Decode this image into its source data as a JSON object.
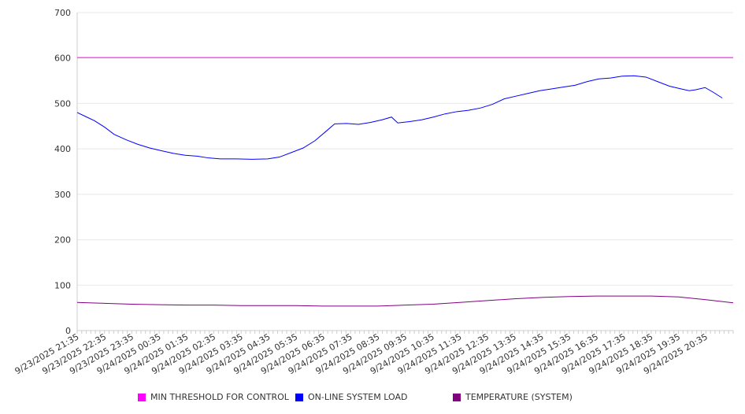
{
  "chart_data": {
    "type": "line",
    "title": "",
    "xlabel": "",
    "ylabel": "",
    "ylim": [
      0,
      700
    ],
    "yticks": [
      0,
      100,
      200,
      300,
      400,
      500,
      600,
      700
    ],
    "x_unit": "hours since 9/23/2025 21:35",
    "xlim": [
      0,
      24
    ],
    "xtick_labels": [
      "9/23/2025 21:35",
      "9/23/2025 22:35",
      "9/23/2025 23:35",
      "9/24/2025 00:35",
      "9/24/2025 01:35",
      "9/24/2025 02:35",
      "9/24/2025 03:35",
      "9/24/2025 04:35",
      "9/24/2025 05:35",
      "9/24/2025 06:35",
      "9/24/2025 07:35",
      "9/24/2025 08:35",
      "9/24/2025 09:35",
      "9/24/2025 10:35",
      "9/24/2025 11:35",
      "9/24/2025 12:35",
      "9/24/2025 13:35",
      "9/24/2025 14:35",
      "9/24/2025 15:35",
      "9/24/2025 16:35",
      "9/24/2025 17:35",
      "9/24/2025 18:35",
      "9/24/2025 19:35",
      "9/24/2025 20:35"
    ],
    "grid": true,
    "legend_position": "bottom",
    "series": [
      {
        "name": "MIN THRESHOLD FOR CONTROL",
        "color": "#ff00ff",
        "x": [
          0,
          24
        ],
        "y": [
          601,
          601
        ]
      },
      {
        "name": "ON-LINE SYSTEM LOAD",
        "color": "#0000ff",
        "x": [
          0,
          0.35,
          0.63,
          1,
          1.35,
          1.79,
          2.22,
          2.65,
          3.08,
          3.52,
          3.95,
          4.38,
          4.81,
          5.24,
          5.82,
          6.4,
          6.97,
          7.4,
          7.84,
          8.27,
          8.7,
          9.13,
          9.42,
          9.86,
          10.29,
          10.72,
          11.15,
          11.5,
          11.73,
          12.16,
          12.6,
          13.03,
          13.46,
          13.89,
          14.32,
          14.76,
          15.19,
          15.62,
          16.05,
          16.48,
          16.92,
          17.35,
          17.78,
          18.21,
          18.65,
          19.08,
          19.51,
          19.94,
          20.37,
          20.81,
          21.24,
          21.67,
          22.1,
          22.39,
          22.62,
          22.97,
          23.26,
          23.6
        ],
        "y": [
          480,
          470,
          462,
          448,
          432,
          420,
          410,
          402,
          396,
          390,
          386,
          384,
          380,
          378,
          378,
          377,
          378,
          382,
          392,
          402,
          418,
          440,
          455,
          456,
          454,
          458,
          464,
          470,
          457,
          460,
          464,
          470,
          477,
          482,
          485,
          490,
          498,
          510,
          516,
          522,
          528,
          532,
          536,
          540,
          548,
          554,
          556,
          560,
          561,
          558,
          548,
          538,
          532,
          528,
          530,
          535,
          525,
          512
        ]
      },
      {
        "name": "TEMPERATURE (SYSTEM)",
        "color": "#800080",
        "x": [
          0,
          1,
          2,
          3,
          4,
          5,
          6,
          7,
          8,
          9,
          10,
          11,
          12,
          13,
          14,
          15,
          16,
          17,
          18,
          19,
          20,
          21,
          22,
          23,
          24
        ],
        "y": [
          62,
          60,
          58,
          57,
          56,
          56,
          55,
          55,
          55,
          54,
          54,
          54,
          56,
          58,
          62,
          66,
          70,
          73,
          75,
          76,
          76,
          76,
          74,
          68,
          61
        ]
      }
    ]
  }
}
